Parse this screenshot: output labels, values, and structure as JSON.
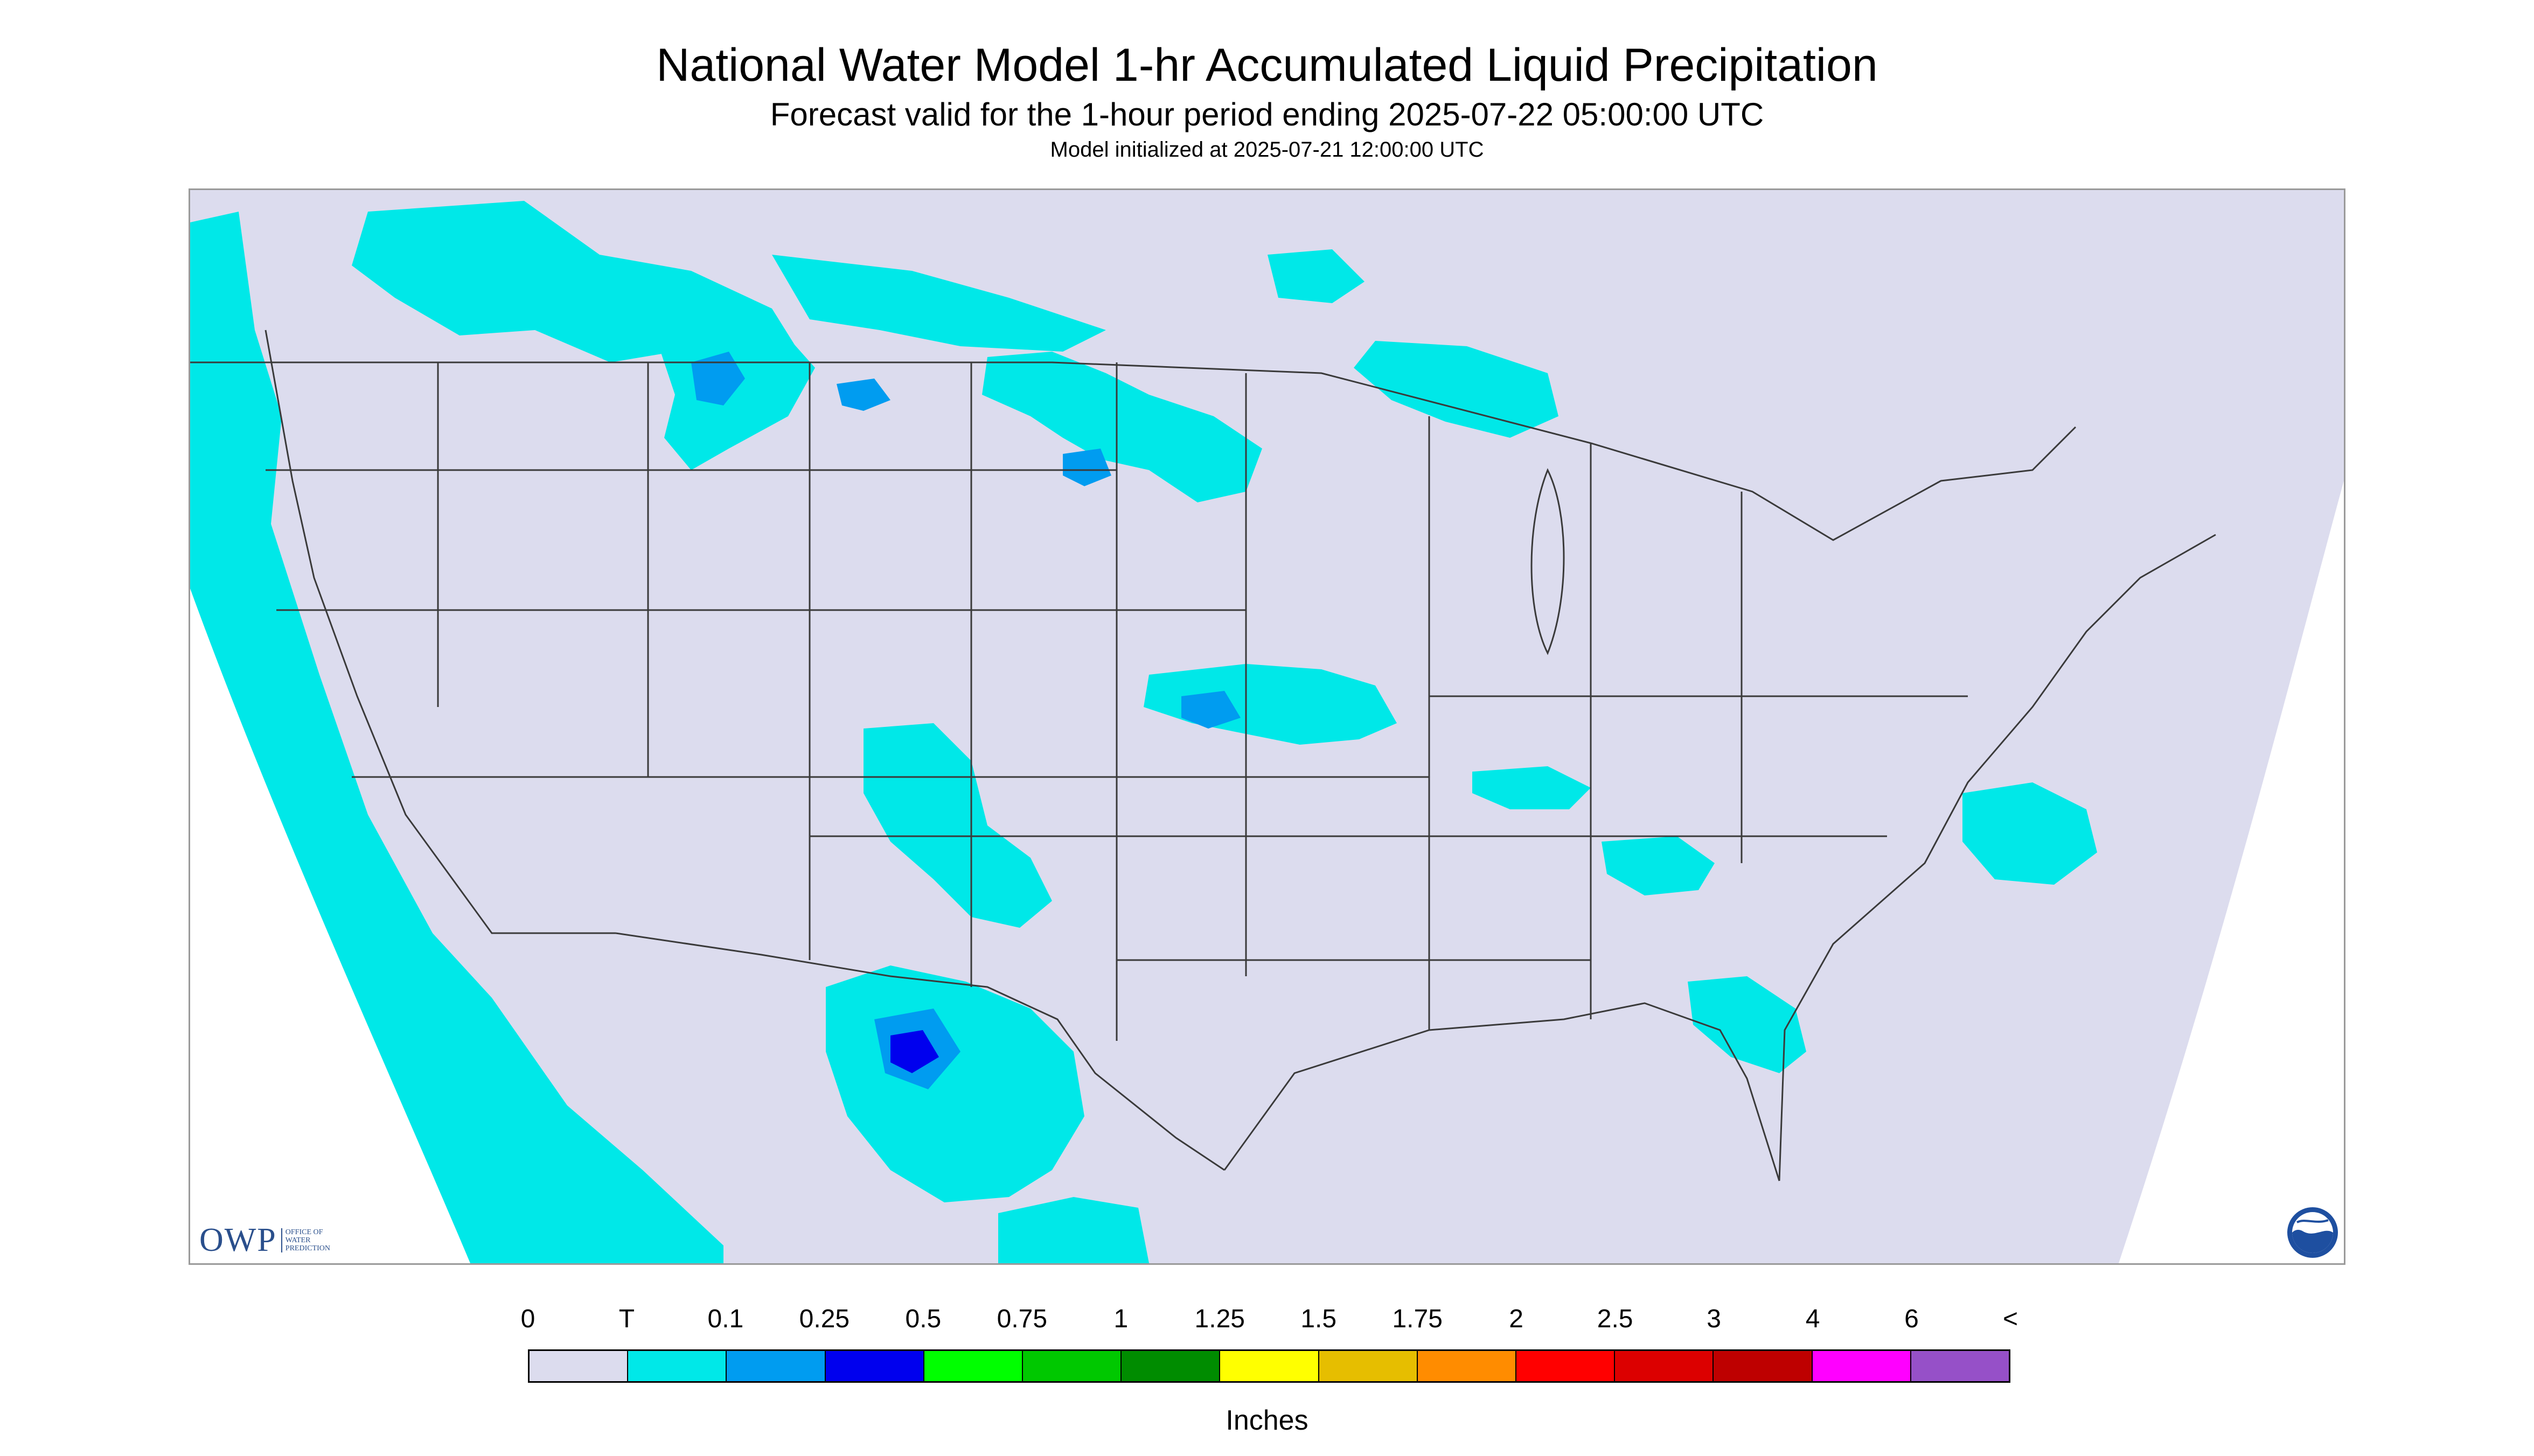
{
  "header": {
    "title": "National Water Model 1-hr Accumulated Liquid Precipitation",
    "subtitle": "Forecast valid for the 1-hour period ending 2025-07-22 05:00:00 UTC",
    "init_line": "Model initialized at 2025-07-21 12:00:00 UTC"
  },
  "map": {
    "background_color": "#dcdcee",
    "light_precip_color": "#00e8e8",
    "moderate_precip_color": "#009cf0",
    "heavy_precip_color": "#0000ee",
    "border_color": "#3a3a3a"
  },
  "logos": {
    "owp_wordmark": "OWP",
    "owp_subtitle": "OFFICE OF WATER PREDICTION",
    "noaa_icon": "noaa-seal-icon"
  },
  "legend": {
    "tick_labels": [
      "0",
      "T",
      "0.1",
      "0.25",
      "0.5",
      "0.75",
      "1",
      "1.25",
      "1.5",
      "1.75",
      "2",
      "2.5",
      "3",
      "4",
      "6",
      "<"
    ],
    "colors": [
      "#dcdcee",
      "#00e8e8",
      "#009cf0",
      "#0000ee",
      "#00ff00",
      "#00c800",
      "#008c00",
      "#ffff00",
      "#e6be00",
      "#ff8c00",
      "#ff0000",
      "#dc0000",
      "#be0000",
      "#ff00ff",
      "#9650c8"
    ],
    "units": "Inches"
  }
}
